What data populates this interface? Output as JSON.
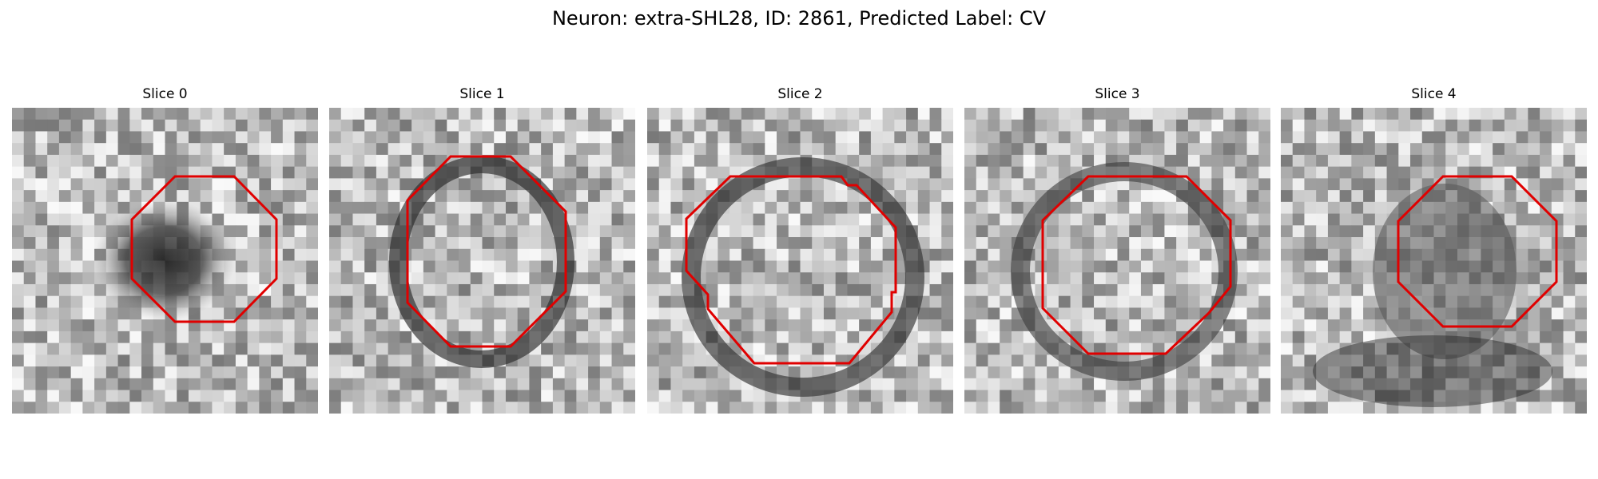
{
  "figure": {
    "title": "Neuron: extra-SHL28, ID: 2861, Predicted Label: CV"
  },
  "colors": {
    "contour": "#e00000",
    "background": "#ffffff"
  },
  "slices": [
    {
      "title": "Slice 0"
    },
    {
      "title": "Slice 1"
    },
    {
      "title": "Slice 2"
    },
    {
      "title": "Slice 3"
    },
    {
      "title": "Slice 4"
    }
  ]
}
